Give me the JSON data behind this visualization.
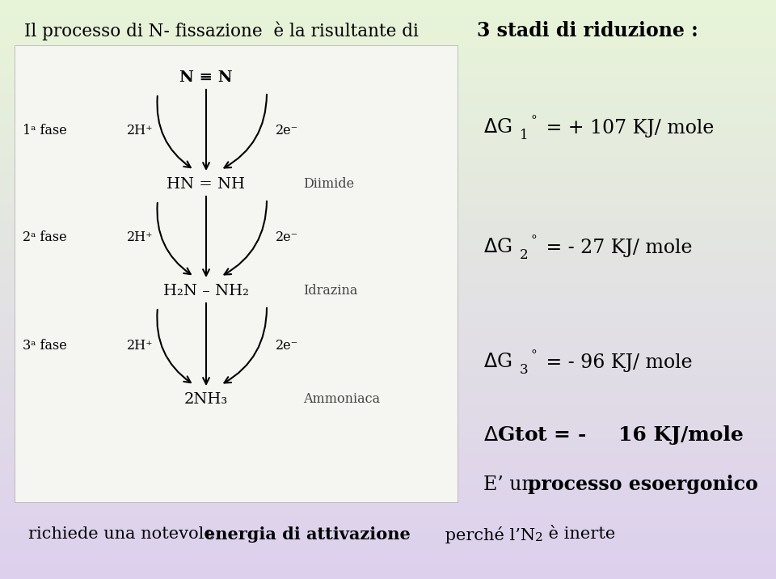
{
  "title_left": "Il processo di N- fissazione  è la risultante di",
  "title_right": "3 stadi di riduzione :",
  "nn_text": "N ≡ N",
  "hn_text": "HN = NH",
  "h2n_text": "H₂N – NH₂",
  "nh3_text": "2NH₃",
  "diimide": "Diimide",
  "idrazina": "Idrazina",
  "ammoniaca": "Ammoniaca",
  "fase1": "1ᵃ fase",
  "fase2": "2ᵃ fase",
  "fase3": "3ᵃ fase",
  "h_plus": "2H⁺",
  "two_e": "2e⁻",
  "dg1_label": "ΔG",
  "dg1_sub": "1",
  "dg1_val": " = + 107 KJ/ mole",
  "dg2_sub": "2",
  "dg2_val": " = - 27 KJ/ mole",
  "dg3_sub": "3",
  "dg3_val": " = - 96 KJ/ mole",
  "dgtot_pre": "ΔGtot = - ",
  "dgtot_bold": "16 KJ/mole",
  "esoerg_pre": "E’ un ",
  "esoerg_bold": "processo esoergonico",
  "bottom_pre": "richiede una notevole ",
  "bottom_bold": "energia di attivazione",
  "bottom_mid": " perché l’N",
  "bottom_sub": "2",
  "bottom_end": " è inerte",
  "bg_top_color": "#e8f5d8",
  "bg_bottom_color": "#ddd0ee",
  "white_box_color": "#f5f5f2",
  "right_panel_top": "#e8f5d8",
  "right_panel_bottom": "#ddd0ee"
}
